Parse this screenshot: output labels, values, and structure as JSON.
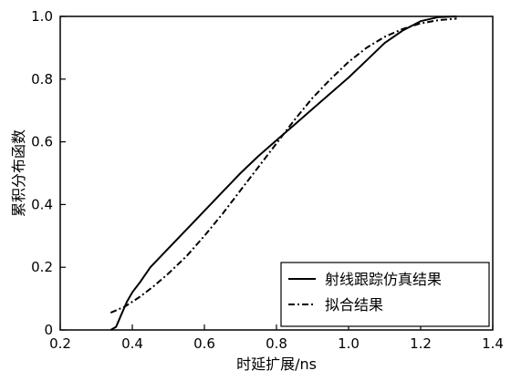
{
  "chart_data": {
    "type": "line",
    "title": "",
    "xlabel": "时延扩展/ns",
    "ylabel": "累积分布函数",
    "xlim": [
      0.2,
      1.4
    ],
    "ylim": [
      0,
      1.0
    ],
    "x_ticks": [
      "0.2",
      "0.4",
      "0.6",
      "0.8",
      "1.0",
      "1.2",
      "1.4"
    ],
    "y_ticks": [
      "0",
      "0.2",
      "0.4",
      "0.6",
      "0.8",
      "1.0"
    ],
    "grid": false,
    "legend_position": "bottom-right",
    "series": [
      {
        "name": "射线跟踪仿真结果",
        "style": "solid",
        "color": "#000000",
        "x": [
          0.34,
          0.355,
          0.37,
          0.385,
          0.4,
          0.42,
          0.45,
          0.5,
          0.55,
          0.6,
          0.65,
          0.7,
          0.75,
          0.8,
          0.85,
          0.9,
          0.95,
          1.0,
          1.05,
          1.1,
          1.15,
          1.2,
          1.25,
          1.3
        ],
        "y": [
          0.0,
          0.01,
          0.05,
          0.09,
          0.12,
          0.15,
          0.2,
          0.26,
          0.32,
          0.38,
          0.44,
          0.5,
          0.555,
          0.605,
          0.655,
          0.705,
          0.755,
          0.805,
          0.86,
          0.915,
          0.955,
          0.985,
          0.998,
          1.0
        ]
      },
      {
        "name": "拟合结果",
        "style": "dash-dot",
        "color": "#000000",
        "x": [
          0.34,
          0.38,
          0.42,
          0.46,
          0.5,
          0.55,
          0.6,
          0.65,
          0.7,
          0.75,
          0.8,
          0.85,
          0.9,
          0.95,
          1.0,
          1.05,
          1.1,
          1.15,
          1.2,
          1.25,
          1.3
        ],
        "y": [
          0.055,
          0.075,
          0.105,
          0.14,
          0.18,
          0.235,
          0.3,
          0.37,
          0.445,
          0.52,
          0.595,
          0.67,
          0.74,
          0.8,
          0.855,
          0.9,
          0.935,
          0.96,
          0.978,
          0.988,
          0.993
        ]
      }
    ]
  }
}
